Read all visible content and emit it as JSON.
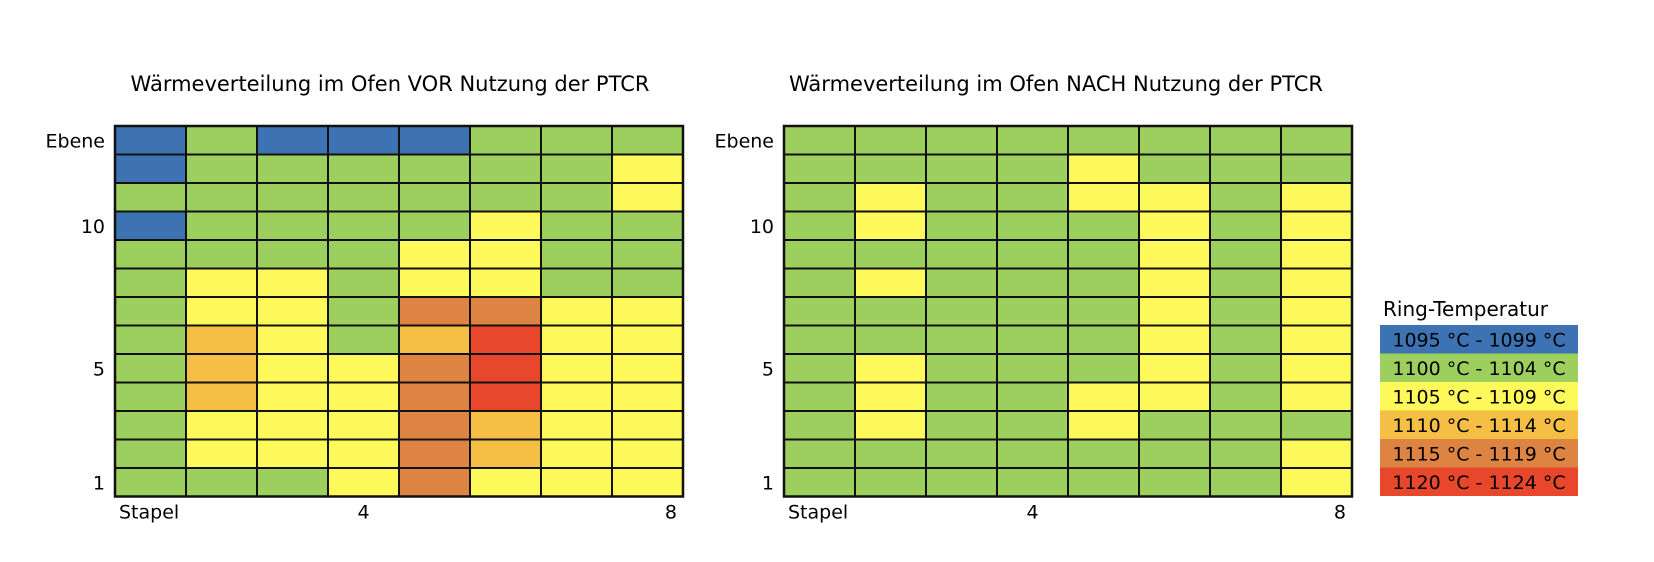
{
  "chart_data": [
    {
      "type": "heatmap",
      "title": "Wärmeverteilung im Ofen VOR Nutzung der PTCR",
      "ylabel": "Ebene",
      "xlabel": "Stapel",
      "x_ticks": [
        {
          "column": 1,
          "label": "Stapel"
        },
        {
          "column": 4,
          "label": "4"
        },
        {
          "column": 8,
          "label": "8"
        }
      ],
      "y_ticks": [
        {
          "row": 13,
          "label": "Ebene"
        },
        {
          "row": 10,
          "label": "10"
        },
        {
          "row": 5,
          "label": "5"
        },
        {
          "row": 1,
          "label": "1"
        }
      ],
      "columns": 8,
      "rows": 13,
      "grid": [
        [
          0,
          1,
          0,
          0,
          0,
          1,
          1,
          1
        ],
        [
          0,
          1,
          1,
          1,
          1,
          1,
          1,
          2
        ],
        [
          1,
          1,
          1,
          1,
          1,
          1,
          1,
          2
        ],
        [
          0,
          1,
          1,
          1,
          1,
          2,
          1,
          1
        ],
        [
          1,
          1,
          1,
          1,
          2,
          2,
          1,
          1
        ],
        [
          1,
          2,
          2,
          1,
          2,
          2,
          1,
          1
        ],
        [
          1,
          2,
          2,
          1,
          4,
          4,
          2,
          2
        ],
        [
          1,
          3,
          2,
          1,
          3,
          5,
          2,
          2
        ],
        [
          1,
          3,
          2,
          2,
          4,
          5,
          2,
          2
        ],
        [
          1,
          3,
          2,
          2,
          4,
          5,
          2,
          2
        ],
        [
          1,
          2,
          2,
          2,
          4,
          3,
          2,
          2
        ],
        [
          1,
          2,
          2,
          2,
          4,
          3,
          2,
          2
        ],
        [
          1,
          1,
          1,
          2,
          4,
          2,
          2,
          2
        ]
      ]
    },
    {
      "type": "heatmap",
      "title": "Wärmeverteilung im Ofen NACH Nutzung der PTCR",
      "ylabel": "Ebene",
      "xlabel": "Stapel",
      "x_ticks": [
        {
          "column": 1,
          "label": "Stapel"
        },
        {
          "column": 4,
          "label": "4"
        },
        {
          "column": 8,
          "label": "8"
        }
      ],
      "y_ticks": [
        {
          "row": 13,
          "label": "Ebene"
        },
        {
          "row": 10,
          "label": "10"
        },
        {
          "row": 5,
          "label": "5"
        },
        {
          "row": 1,
          "label": "1"
        }
      ],
      "columns": 8,
      "rows": 13,
      "grid": [
        [
          1,
          1,
          1,
          1,
          1,
          1,
          1,
          1
        ],
        [
          1,
          1,
          1,
          1,
          2,
          1,
          1,
          1
        ],
        [
          1,
          2,
          1,
          1,
          2,
          2,
          1,
          2
        ],
        [
          1,
          2,
          1,
          1,
          1,
          2,
          1,
          2
        ],
        [
          1,
          1,
          1,
          1,
          1,
          2,
          1,
          2
        ],
        [
          1,
          2,
          1,
          1,
          1,
          2,
          1,
          2
        ],
        [
          1,
          1,
          1,
          1,
          1,
          2,
          1,
          2
        ],
        [
          1,
          1,
          1,
          1,
          1,
          2,
          1,
          2
        ],
        [
          1,
          2,
          1,
          1,
          1,
          2,
          1,
          2
        ],
        [
          1,
          2,
          1,
          1,
          2,
          2,
          1,
          2
        ],
        [
          1,
          2,
          1,
          1,
          2,
          1,
          1,
          1
        ],
        [
          1,
          1,
          1,
          1,
          1,
          1,
          1,
          2
        ],
        [
          1,
          1,
          1,
          1,
          1,
          1,
          1,
          2
        ]
      ]
    }
  ],
  "legend": {
    "title": "Ring-Temperatur",
    "placement": "right",
    "entries": [
      {
        "label": "1095 °C - 1099 °C",
        "color": "#3d72b3"
      },
      {
        "label": "1100 °C - 1104 °C",
        "color": "#9dcf5f"
      },
      {
        "label": "1105 °C - 1109 °C",
        "color": "#fdf95a"
      },
      {
        "label": "1110 °C - 1114 °C",
        "color": "#f5bf45"
      },
      {
        "label": "1115 °C - 1119 °C",
        "color": "#de8443"
      },
      {
        "label": "1120 °C - 1124 °C",
        "color": "#e8472b"
      }
    ]
  }
}
